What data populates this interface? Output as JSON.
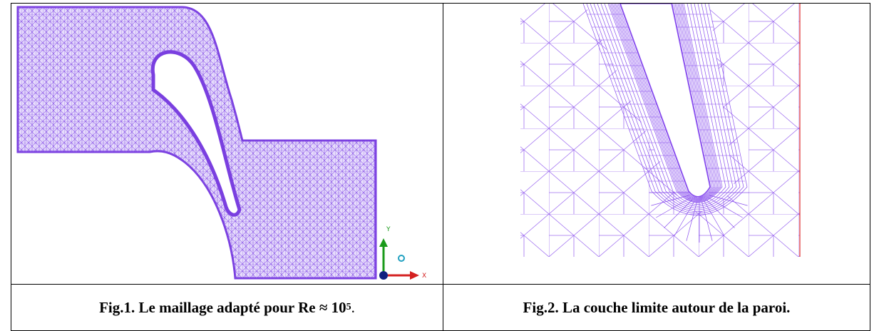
{
  "figures": [
    {
      "caption": "Fig.1. Le maillage adapté pour Re ≈ 10",
      "caption_exponent": "5",
      "caption_end": ".",
      "axis_labels": [
        "Y",
        "X"
      ]
    },
    {
      "caption": "Fig.2. La couche limite autour de la paroi."
    }
  ]
}
